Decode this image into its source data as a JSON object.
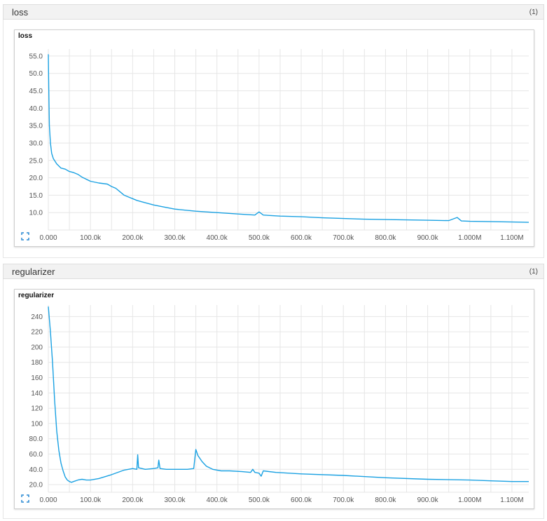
{
  "sections": [
    {
      "title": "loss",
      "count": "(1)"
    },
    {
      "title": "regularizer",
      "count": "(1)"
    }
  ],
  "chart_data": [
    {
      "type": "line",
      "title": "loss",
      "xlabel": "",
      "ylabel": "",
      "xlim": [
        0,
        1140000
      ],
      "ylim": [
        5,
        57
      ],
      "x_ticks": [
        "0.000",
        "100.0k",
        "200.0k",
        "300.0k",
        "400.0k",
        "500.0k",
        "600.0k",
        "700.0k",
        "800.0k",
        "900.0k",
        "1.000M",
        "1.100M"
      ],
      "y_ticks": [
        "10.0",
        "15.0",
        "20.0",
        "25.0",
        "30.0",
        "35.0",
        "40.0",
        "45.0",
        "50.0",
        "55.0"
      ],
      "grid": true,
      "color": "#1aa1e2",
      "series": [
        {
          "x": [
            0,
            1000,
            2500,
            5000,
            8000,
            12000,
            20000,
            30000,
            40000,
            50000,
            60000,
            70000,
            80000,
            100000,
            120000,
            140000,
            150000,
            160000,
            170000,
            180000,
            190000,
            200000,
            210000,
            225000,
            250000,
            275000,
            300000,
            350000,
            400000,
            450000,
            490000,
            500000,
            510000,
            550000,
            600000,
            650000,
            700000,
            750000,
            800000,
            850000,
            900000,
            950000,
            970000,
            980000,
            1000000,
            1050000,
            1100000,
            1140000
          ],
          "y": [
            55.5,
            46,
            35,
            30,
            27,
            25.5,
            24,
            22.8,
            22.5,
            21.8,
            21.5,
            21,
            20.2,
            19,
            18.5,
            18.2,
            17.5,
            17,
            16,
            15,
            14.5,
            14,
            13.5,
            13,
            12.2,
            11.6,
            11,
            10.4,
            10,
            9.6,
            9.3,
            10.2,
            9.3,
            9.0,
            8.8,
            8.5,
            8.3,
            8.1,
            8.0,
            7.9,
            7.8,
            7.7,
            8.6,
            7.6,
            7.5,
            7.4,
            7.3,
            7.2
          ]
        }
      ]
    },
    {
      "type": "line",
      "title": "regularizer",
      "xlabel": "",
      "ylabel": "",
      "xlim": [
        0,
        1140000
      ],
      "ylim": [
        10,
        255
      ],
      "x_ticks": [
        "0.000",
        "100.0k",
        "200.0k",
        "300.0k",
        "400.0k",
        "500.0k",
        "600.0k",
        "700.0k",
        "800.0k",
        "900.0k",
        "1.000M",
        "1.100M"
      ],
      "y_ticks": [
        "20.0",
        "40.0",
        "60.0",
        "80.0",
        "100",
        "120",
        "140",
        "160",
        "180",
        "200",
        "220",
        "240"
      ],
      "grid": true,
      "color": "#1aa1e2",
      "series": [
        {
          "x": [
            0,
            5000,
            10000,
            15000,
            20000,
            25000,
            30000,
            35000,
            40000,
            45000,
            50000,
            55000,
            60000,
            70000,
            80000,
            90000,
            100000,
            120000,
            150000,
            180000,
            200000,
            210000,
            212000,
            214000,
            230000,
            250000,
            260000,
            262000,
            265000,
            280000,
            300000,
            330000,
            345000,
            350000,
            355000,
            365000,
            375000,
            390000,
            410000,
            430000,
            460000,
            480000,
            485000,
            490000,
            500000,
            505000,
            510000,
            540000,
            600000,
            700000,
            800000,
            900000,
            1000000,
            1050000,
            1100000,
            1140000
          ],
          "y": [
            253,
            220,
            180,
            130,
            90,
            65,
            48,
            38,
            30,
            26,
            24,
            23,
            24,
            26,
            27,
            26,
            26,
            28,
            33,
            39,
            41,
            40,
            59,
            42,
            40,
            41,
            42,
            52,
            41,
            40,
            40,
            40,
            41,
            66,
            58,
            50,
            44,
            40,
            38,
            38,
            37,
            36,
            40,
            36,
            35,
            31,
            38,
            36,
            34,
            32,
            29,
            27,
            26,
            25,
            24,
            24
          ]
        }
      ]
    }
  ]
}
